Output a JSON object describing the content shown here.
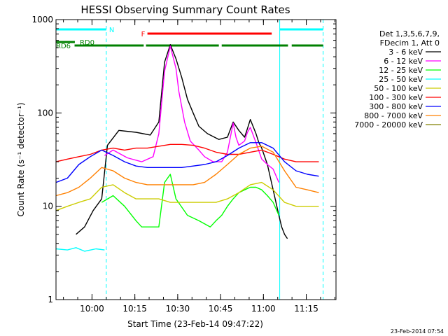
{
  "chart_data": {
    "type": "line",
    "title": "HESSI Observing Summary Count Rates",
    "xlabel": "Start Time (23-Feb-14 09:47:22)",
    "ylabel": "Count Rate (s⁻¹ detector⁻¹)",
    "ylog": true,
    "ylim": [
      1,
      1000
    ],
    "xlim": [
      0,
      98
    ],
    "x_unit": "minutes since 09:47:22",
    "x_tick_labels": [
      "10:00",
      "10:15",
      "10:30",
      "10:45",
      "11:00",
      "11:15"
    ],
    "x_tick_values": [
      12.6,
      27.6,
      42.6,
      57.6,
      72.6,
      87.6
    ],
    "y_tick_labels": [
      "1",
      "10",
      "100",
      "1000"
    ],
    "y_tick_values": [
      1,
      10,
      100,
      1000
    ],
    "timestamp": "23-Feb-2014 07:54",
    "legend_header": [
      "Det 1,3,5,6,7,9,",
      "FDecim 1, Att 0"
    ],
    "bars": [
      {
        "label": "N",
        "color": "#00ffff",
        "segments": [
          [
            0,
            17.6
          ],
          [
            78.3,
            93.5
          ]
        ]
      },
      {
        "label": "F",
        "color": "#ff0000",
        "segments": [
          [
            32,
            75.5
          ]
        ]
      },
      {
        "label": "RD0",
        "color": "#008000",
        "segments": [
          [
            0,
            6.6
          ]
        ]
      },
      {
        "label": "RD6",
        "color": "#008000",
        "segments": [
          [
            6.5,
            30.7
          ],
          [
            31.5,
            57.0
          ],
          [
            58.0,
            81.2
          ],
          [
            82.5,
            93.5
          ]
        ]
      }
    ],
    "markers": [
      {
        "style": "dashed",
        "color": "#00ffff",
        "x": 17.6
      },
      {
        "style": "solid",
        "color": "#00ffff",
        "x": 78.3
      },
      {
        "style": "dashed",
        "color": "#00ffff",
        "x": 93.5
      }
    ],
    "series": [
      {
        "name": "3 - 6 keV",
        "color": "#000000",
        "x": [
          7,
          10,
          13,
          16,
          18,
          22,
          28,
          33,
          36,
          38,
          40,
          42,
          44,
          46,
          48,
          50,
          53,
          57,
          60,
          62,
          64,
          66,
          67,
          68,
          70,
          71,
          72,
          74,
          76,
          78,
          79,
          80,
          81
        ],
        "y": [
          5,
          6,
          9,
          12,
          45,
          65,
          62,
          58,
          80,
          350,
          540,
          380,
          240,
          140,
          100,
          72,
          60,
          52,
          55,
          80,
          65,
          55,
          68,
          85,
          60,
          48,
          42,
          28,
          15,
          8,
          6,
          5,
          4.5
        ]
      },
      {
        "name": "6 - 12 keV",
        "color": "#ff00ff",
        "x": [
          17,
          20,
          25,
          30,
          34,
          36,
          38,
          40,
          42,
          43,
          45,
          47,
          50,
          52,
          55,
          58,
          60,
          62,
          63,
          64,
          66,
          67,
          68,
          70,
          72,
          74,
          76,
          78
        ],
        "y": [
          35,
          40,
          33,
          30,
          34,
          60,
          280,
          520,
          300,
          170,
          80,
          50,
          40,
          34,
          30,
          30,
          38,
          78,
          55,
          45,
          50,
          62,
          70,
          48,
          32,
          28,
          25,
          18
        ]
      },
      {
        "name": "12 - 25 keV",
        "color": "#00ff00",
        "x": [
          16,
          20,
          24,
          28,
          30,
          33,
          36,
          38,
          40,
          42,
          46,
          50,
          54,
          56,
          58,
          60,
          62,
          64,
          66,
          68,
          70,
          72,
          74,
          76,
          78
        ],
        "y": [
          11,
          13,
          10,
          7,
          6,
          6,
          6,
          18,
          22,
          12,
          8,
          7,
          6,
          7,
          8,
          10,
          12,
          14,
          15,
          16,
          16,
          15,
          13,
          11,
          8
        ]
      },
      {
        "name": "25 - 50 keV",
        "color": "#00ffff",
        "x": [
          0,
          4,
          7,
          10,
          14,
          17
        ],
        "y": [
          3.5,
          3.4,
          3.6,
          3.3,
          3.5,
          3.4
        ]
      },
      {
        "name": "50 - 100 keV",
        "color": "#cccc00",
        "x": [
          0,
          4,
          8,
          12,
          16,
          20,
          24,
          28,
          32,
          36,
          40,
          44,
          48,
          52,
          56,
          60,
          64,
          68,
          72,
          76,
          80,
          84,
          88,
          92
        ],
        "y": [
          9,
          10,
          11,
          12,
          16,
          17,
          14,
          12,
          12,
          12,
          11,
          11,
          11,
          11,
          11,
          12,
          14,
          17,
          18,
          15,
          11,
          10,
          10,
          10
        ]
      },
      {
        "name": "100 - 300 keV",
        "color": "#ff0000",
        "x": [
          0,
          4,
          8,
          12,
          16,
          20,
          24,
          28,
          32,
          36,
          40,
          44,
          48,
          52,
          56,
          60,
          64,
          68,
          72,
          76,
          80,
          84,
          88,
          92
        ],
        "y": [
          30,
          32,
          34,
          36,
          40,
          42,
          40,
          42,
          42,
          44,
          46,
          46,
          45,
          42,
          38,
          36,
          36,
          38,
          40,
          36,
          32,
          30,
          30,
          30
        ]
      },
      {
        "name": "300 - 800 keV",
        "color": "#0000ff",
        "x": [
          0,
          4,
          8,
          12,
          16,
          20,
          24,
          28,
          32,
          36,
          40,
          44,
          48,
          52,
          56,
          60,
          64,
          68,
          72,
          76,
          80,
          84,
          88,
          92
        ],
        "y": [
          18,
          20,
          28,
          34,
          40,
          35,
          30,
          27,
          26,
          26,
          26,
          26,
          27,
          28,
          30,
          35,
          42,
          48,
          48,
          42,
          30,
          24,
          22,
          21
        ]
      },
      {
        "name": "800 - 7000 keV",
        "color": "#ff8000",
        "x": [
          0,
          4,
          8,
          12,
          16,
          20,
          24,
          28,
          32,
          36,
          40,
          44,
          48,
          52,
          56,
          60,
          64,
          68,
          72,
          76,
          80,
          84,
          88,
          92
        ],
        "y": [
          13,
          14,
          16,
          20,
          26,
          24,
          20,
          18,
          17,
          17,
          17,
          17,
          17,
          18,
          22,
          28,
          36,
          42,
          44,
          38,
          24,
          16,
          15,
          14
        ]
      },
      {
        "name": "7000 - 20000 keV",
        "color": "#808000",
        "x": [],
        "y": []
      }
    ]
  }
}
